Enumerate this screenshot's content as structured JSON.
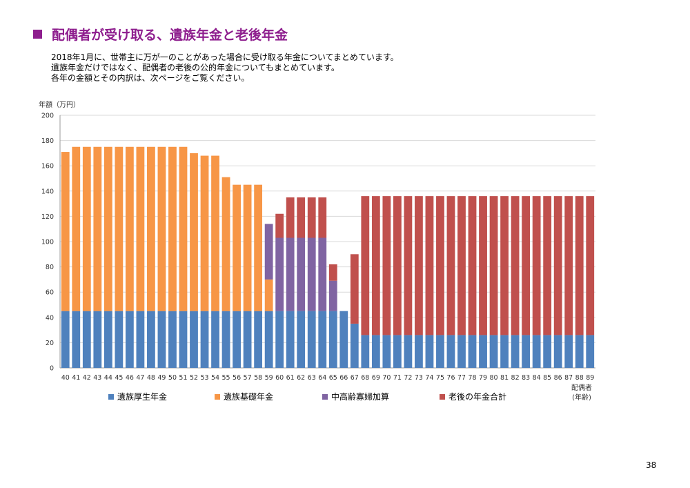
{
  "page": {
    "title": "配偶者が受け取る、遺族年金と老後年金",
    "description": [
      "2018年1月に、世帯主に万が一のことがあった場合に受け取る年金についてまとめています。",
      "遺族年金だけではなく、配偶者の老後の公的年金についてもまとめています。",
      "各年の金額とその内訳は、次ページをご覧ください。"
    ],
    "page_number": "38"
  },
  "chart_data": {
    "type": "bar",
    "stacked": true,
    "ylabel": "年額（万円）",
    "xlabel": [
      "配偶者",
      "(年齢)"
    ],
    "ylim": [
      0,
      200
    ],
    "yticks": [
      0,
      20,
      40,
      60,
      80,
      100,
      120,
      140,
      160,
      180,
      200
    ],
    "grid": true,
    "legend_position": "bottom",
    "categories": [
      "40",
      "41",
      "42",
      "43",
      "44",
      "45",
      "46",
      "47",
      "48",
      "49",
      "50",
      "51",
      "52",
      "53",
      "54",
      "55",
      "56",
      "57",
      "58",
      "59",
      "60",
      "61",
      "62",
      "63",
      "64",
      "65",
      "66",
      "67",
      "68",
      "69",
      "70",
      "71",
      "72",
      "73",
      "74",
      "75",
      "76",
      "77",
      "78",
      "79",
      "80",
      "81",
      "82",
      "83",
      "84",
      "85",
      "86",
      "87",
      "88",
      "89"
    ],
    "series": [
      {
        "name": "遺族厚生年金",
        "color": "#4f81bd",
        "values": [
          45,
          45,
          45,
          45,
          45,
          45,
          45,
          45,
          45,
          45,
          45,
          45,
          45,
          45,
          45,
          45,
          45,
          45,
          45,
          45,
          45,
          45,
          45,
          45,
          45,
          45,
          45,
          35,
          26,
          26,
          26,
          26,
          26,
          26,
          26,
          26,
          26,
          26,
          26,
          26,
          26,
          26,
          26,
          26,
          26,
          26,
          26,
          26,
          26,
          26
        ]
      },
      {
        "name": "遺族基礎年金",
        "color": "#f79646",
        "values": [
          126,
          130,
          130,
          130,
          130,
          130,
          130,
          130,
          130,
          130,
          130,
          130,
          125,
          123,
          123,
          106,
          100,
          100,
          100,
          25,
          0,
          0,
          0,
          0,
          0,
          0,
          0,
          0,
          0,
          0,
          0,
          0,
          0,
          0,
          0,
          0,
          0,
          0,
          0,
          0,
          0,
          0,
          0,
          0,
          0,
          0,
          0,
          0,
          0,
          0
        ]
      },
      {
        "name": "中高齢寡婦加算",
        "color": "#8064a2",
        "values": [
          0,
          0,
          0,
          0,
          0,
          0,
          0,
          0,
          0,
          0,
          0,
          0,
          0,
          0,
          0,
          0,
          0,
          0,
          0,
          44,
          58,
          58,
          58,
          58,
          58,
          24,
          0,
          0,
          0,
          0,
          0,
          0,
          0,
          0,
          0,
          0,
          0,
          0,
          0,
          0,
          0,
          0,
          0,
          0,
          0,
          0,
          0,
          0,
          0,
          0
        ]
      },
      {
        "name": "老後の年金合計",
        "color": "#c0504d",
        "values": [
          0,
          0,
          0,
          0,
          0,
          0,
          0,
          0,
          0,
          0,
          0,
          0,
          0,
          0,
          0,
          0,
          0,
          0,
          0,
          0,
          19,
          32,
          32,
          32,
          32,
          13,
          0,
          55,
          110,
          110,
          110,
          110,
          110,
          110,
          110,
          110,
          110,
          110,
          110,
          110,
          110,
          110,
          110,
          110,
          110,
          110,
          110,
          110,
          110,
          110
        ]
      }
    ]
  }
}
